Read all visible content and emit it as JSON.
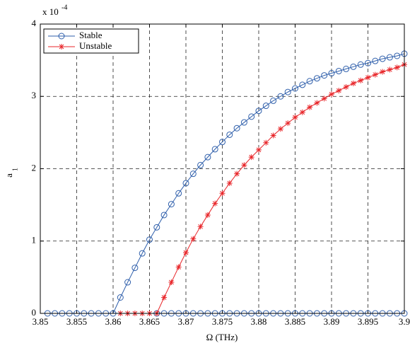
{
  "chart_data": {
    "type": "line",
    "xlabel": "Ω (THz)",
    "ylabel": "a",
    "ylabel_subscript": "1",
    "y_multiplier": "x 10",
    "y_multiplier_exponent": "-4",
    "xlim": [
      3.85,
      3.9
    ],
    "ylim": [
      0,
      4
    ],
    "xticks": [
      {
        "value": 3.85,
        "label": "3.85"
      },
      3.855,
      {
        "value": 3.86,
        "label": "3.86"
      },
      3.865,
      {
        "value": 3.87,
        "label": "3.87"
      },
      3.875,
      {
        "value": 3.88,
        "label": "3.88"
      },
      3.885,
      {
        "value": 3.89,
        "label": "3.89"
      },
      3.895,
      3.9
    ],
    "yticks": [
      0,
      1,
      2,
      3,
      4
    ],
    "grid": true,
    "legend": "upper left",
    "series": [
      {
        "name": "Stable",
        "color": "#2f5fab",
        "marker": "circle",
        "x": [
          3.851,
          3.852,
          3.853,
          3.854,
          3.855,
          3.856,
          3.857,
          3.858,
          3.859,
          3.86,
          3.861,
          3.862,
          3.863,
          3.864,
          3.865,
          3.866,
          3.867,
          3.868,
          3.869,
          3.87,
          3.871,
          3.872,
          3.873,
          3.874,
          3.875,
          3.876,
          3.877,
          3.878,
          3.879,
          3.88,
          3.881,
          3.882,
          3.883,
          3.884,
          3.885,
          3.886,
          3.887,
          3.888,
          3.889,
          3.89,
          3.891,
          3.892,
          3.893,
          3.894,
          3.895,
          3.896,
          3.897,
          3.898,
          3.899,
          3.9,
          null,
          3.866,
          3.867,
          3.868,
          3.869,
          3.87,
          3.871,
          3.872,
          3.873,
          3.874,
          3.875,
          3.876,
          3.877,
          3.878,
          3.879,
          3.88,
          3.881,
          3.882,
          3.883,
          3.884,
          3.885,
          3.886,
          3.887,
          3.888,
          3.889,
          3.89,
          3.891,
          3.892,
          3.893,
          3.894,
          3.895,
          3.896,
          3.897,
          3.898,
          3.899,
          3.9
        ],
        "values": [
          0,
          0,
          0,
          0,
          0,
          0,
          0,
          0,
          0,
          0,
          0.22,
          0.43,
          0.63,
          0.83,
          1.02,
          1.19,
          1.36,
          1.51,
          1.66,
          1.8,
          1.93,
          2.05,
          2.16,
          2.27,
          2.37,
          2.47,
          2.56,
          2.64,
          2.72,
          2.8,
          2.87,
          2.94,
          3.0,
          3.06,
          3.11,
          3.16,
          3.21,
          3.25,
          3.29,
          3.32,
          3.35,
          3.38,
          3.41,
          3.44,
          3.46,
          3.49,
          3.52,
          3.54,
          3.56,
          3.59,
          null,
          0,
          0,
          0,
          0,
          0,
          0,
          0,
          0,
          0,
          0,
          0,
          0,
          0,
          0,
          0,
          0,
          0,
          0,
          0,
          0,
          0,
          0,
          0,
          0,
          0,
          0,
          0,
          0,
          0,
          0,
          0,
          0,
          0,
          0,
          0
        ]
      },
      {
        "name": "Unstable",
        "color": "#e8262a",
        "marker": "star",
        "x": [
          3.861,
          3.862,
          3.863,
          3.864,
          3.865,
          3.866,
          3.867,
          3.868,
          3.869,
          3.87,
          3.871,
          3.872,
          3.873,
          3.874,
          3.875,
          3.876,
          3.877,
          3.878,
          3.879,
          3.88,
          3.881,
          3.882,
          3.883,
          3.884,
          3.885,
          3.886,
          3.887,
          3.888,
          3.889,
          3.89,
          3.891,
          3.892,
          3.893,
          3.894,
          3.895,
          3.896,
          3.897,
          3.898,
          3.899,
          3.9
        ],
        "values": [
          0,
          0,
          0,
          0,
          0,
          0,
          0.22,
          0.43,
          0.64,
          0.84,
          1.03,
          1.2,
          1.36,
          1.52,
          1.66,
          1.8,
          1.93,
          2.05,
          2.16,
          2.26,
          2.36,
          2.46,
          2.55,
          2.63,
          2.71,
          2.78,
          2.85,
          2.91,
          2.97,
          3.03,
          3.08,
          3.13,
          3.18,
          3.22,
          3.26,
          3.3,
          3.34,
          3.37,
          3.4,
          3.44
        ]
      }
    ]
  }
}
